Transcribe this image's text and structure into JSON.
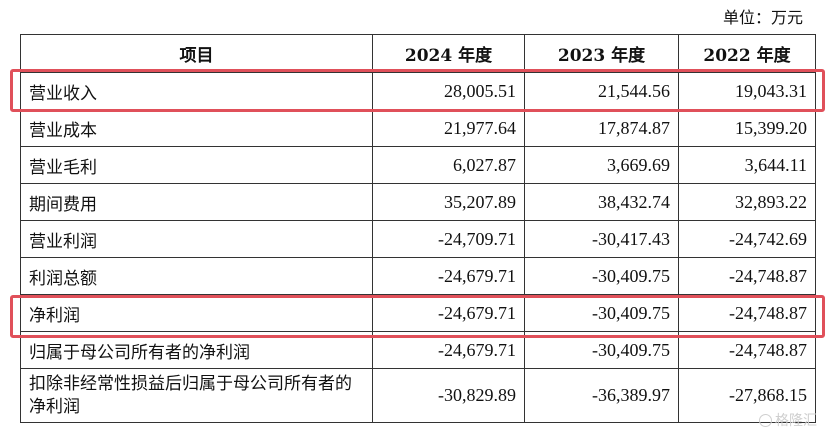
{
  "unit_label": "单位：万元",
  "table": {
    "headers": [
      "项目",
      "2024 年度",
      "2023 年度",
      "2022 年度"
    ],
    "rows": [
      {
        "item": "营业收入",
        "y2024": "28,005.51",
        "y2023": "21,544.56",
        "y2022": "19,043.31",
        "highlighted": true
      },
      {
        "item": "营业成本",
        "y2024": "21,977.64",
        "y2023": "17,874.87",
        "y2022": "15,399.20"
      },
      {
        "item": "营业毛利",
        "y2024": "6,027.87",
        "y2023": "3,669.69",
        "y2022": "3,644.11"
      },
      {
        "item": "期间费用",
        "y2024": "35,207.89",
        "y2023": "38,432.74",
        "y2022": "32,893.22"
      },
      {
        "item": "营业利润",
        "y2024": "-24,709.71",
        "y2023": "-30,417.43",
        "y2022": "-24,742.69"
      },
      {
        "item": "利润总额",
        "y2024": "-24,679.71",
        "y2023": "-30,409.75",
        "y2022": "-24,748.87"
      },
      {
        "item": "净利润",
        "y2024": "-24,679.71",
        "y2023": "-30,409.75",
        "y2022": "-24,748.87",
        "highlighted": true
      },
      {
        "item": "归属于母公司所有者的净利润",
        "y2024": "-24,679.71",
        "y2023": "-30,409.75",
        "y2022": "-24,748.87"
      },
      {
        "item": "扣除非经常性损益后归属于母公司所有者的净利润",
        "y2024": "-30,829.89",
        "y2023": "-36,389.97",
        "y2022": "-27,868.15"
      }
    ]
  },
  "highlight_color": "#e0505a",
  "watermark": {
    "text": "格隆汇",
    "icon": "watermark-logo-icon"
  }
}
